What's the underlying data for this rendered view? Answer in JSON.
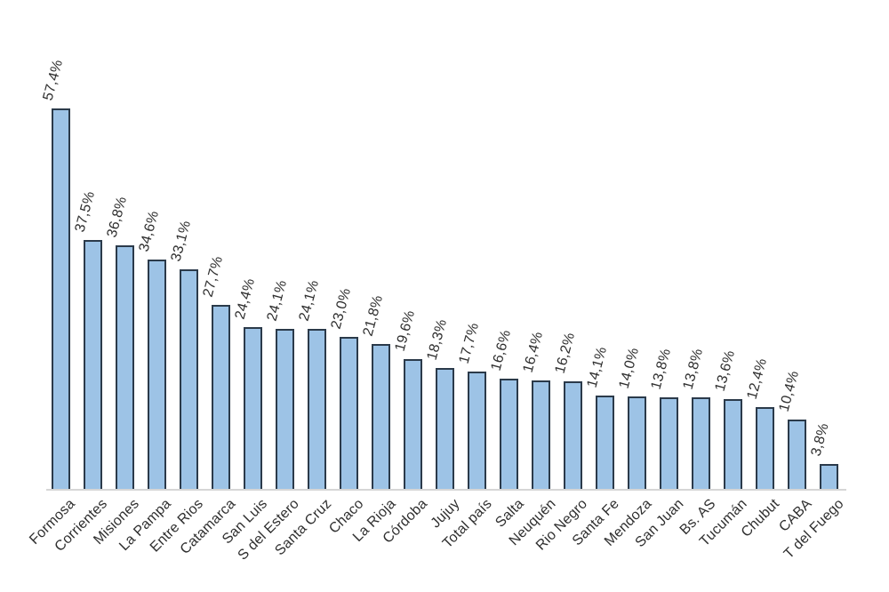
{
  "chart_data": {
    "type": "bar",
    "title": "",
    "xlabel": "",
    "ylabel": "",
    "grid": false,
    "legend_position": "none",
    "y_axis_visible": false,
    "ylim": [
      0,
      60
    ],
    "categories": [
      "Formosa",
      "Corrientes",
      "Misiones",
      "La Pampa",
      "Entre Rios",
      "Catamarca",
      "San Luis",
      "S del Estero",
      "Santa Cruz",
      "Chaco",
      "La Rioja",
      "Córdoba",
      "Jujuy",
      "Total país",
      "Salta",
      "Neuquén",
      "Rio Negro",
      "Santa Fe",
      "Mendoza",
      "San Juan",
      "Bs. AS",
      "Tucumán",
      "Chubut",
      "CABA",
      "T del Fuego"
    ],
    "values": [
      57.4,
      37.5,
      36.8,
      34.6,
      33.1,
      27.7,
      24.4,
      24.1,
      24.1,
      23.0,
      21.8,
      19.6,
      18.3,
      17.7,
      16.6,
      16.4,
      16.2,
      14.1,
      14.0,
      13.8,
      13.8,
      13.6,
      12.4,
      10.4,
      3.8
    ],
    "value_labels": [
      "57,4%",
      "37,5%",
      "36,8%",
      "34,6%",
      "33,1%",
      "27,7%",
      "24,4%",
      "24,1%",
      "24,1%",
      "23,0%",
      "21,8%",
      "19,6%",
      "18,3%",
      "17,7%",
      "16,6%",
      "16,4%",
      "16,2%",
      "14,1%",
      "14,0%",
      "13,8%",
      "13,8%",
      "13,6%",
      "12,4%",
      "10,4%",
      "3,8%"
    ],
    "colors": {
      "bar_fill": "#9dc3e6",
      "bar_border": "#2b3a4a",
      "axis_line": "#d6d6d6",
      "label_text": "#2e2e2e"
    }
  }
}
